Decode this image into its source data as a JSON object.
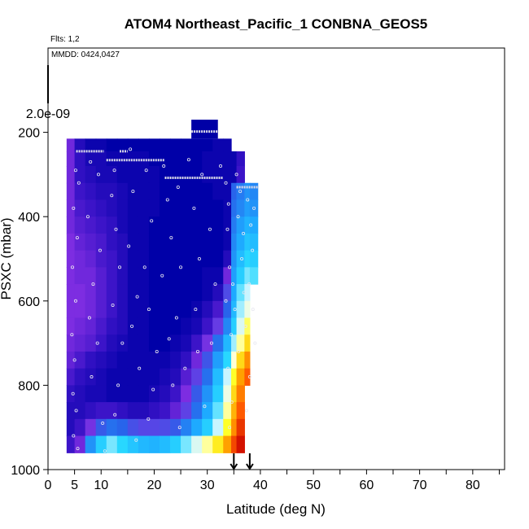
{
  "chart_data": {
    "type": "heatmap",
    "title": "ATOM4 Northeast_Pacific_1 CONBNA_GEOS5",
    "subtitle_flights": "Flts: 1,2",
    "subtitle_dates": "MMDD: 0424,0427",
    "xlabel": "Latitude (deg N)",
    "ylabel": "PSXC (mbar)",
    "xlim": [
      0,
      86
    ],
    "ylim": [
      1000,
      0
    ],
    "x_ticks_labeled": [
      0,
      5,
      10,
      20,
      30,
      40,
      50,
      60,
      70,
      80
    ],
    "x_ticks_minor": [
      15,
      25,
      35,
      45,
      55,
      65,
      75,
      85
    ],
    "y_ticks": [
      200,
      400,
      600,
      800,
      1000
    ],
    "legend_max_label": "2.0e-09",
    "legend_max_value": 2e-09,
    "curtain": {
      "lat_edges": [
        3.5,
        5,
        7,
        9,
        11,
        13,
        15,
        17,
        19,
        21,
        23,
        25,
        27,
        29,
        31,
        33,
        34.5,
        35.5,
        37,
        38,
        39.5
      ],
      "pressure_edges": [
        215,
        245,
        280,
        320,
        360,
        400,
        440,
        480,
        520,
        560,
        600,
        640,
        680,
        720,
        760,
        800,
        840,
        880,
        920,
        960
      ],
      "level_rows": [
        [
          0.18,
          0.12,
          0.1,
          0.1,
          0.09,
          0.09,
          0.09,
          0.09,
          0.09,
          0.09,
          0.09,
          0.09,
          0.09,
          0.09,
          0.1,
          0.1,
          null,
          null,
          null,
          null
        ],
        [
          0.18,
          0.13,
          0.11,
          0.11,
          0.1,
          0.1,
          0.1,
          0.1,
          0.09,
          0.09,
          0.09,
          0.09,
          0.09,
          0.1,
          0.1,
          0.1,
          0.1,
          0.13,
          null,
          null
        ],
        [
          0.18,
          0.13,
          0.12,
          0.11,
          0.11,
          0.1,
          0.1,
          0.1,
          0.1,
          0.09,
          0.09,
          0.09,
          0.09,
          0.1,
          0.1,
          0.1,
          0.1,
          0.14,
          null,
          null
        ],
        [
          0.18,
          0.14,
          0.13,
          0.12,
          0.12,
          0.11,
          0.1,
          0.1,
          0.1,
          0.09,
          0.09,
          0.09,
          0.09,
          0.09,
          0.1,
          0.1,
          0.3,
          0.34,
          0.38,
          0.36
        ],
        [
          0.18,
          0.15,
          0.14,
          0.13,
          0.12,
          0.11,
          0.1,
          0.1,
          0.1,
          0.09,
          0.09,
          0.09,
          0.09,
          0.09,
          0.09,
          0.1,
          0.32,
          0.36,
          0.4,
          0.38
        ],
        [
          0.18,
          0.16,
          0.15,
          0.14,
          0.13,
          0.11,
          0.1,
          0.1,
          0.09,
          0.09,
          0.09,
          0.09,
          0.09,
          0.09,
          0.09,
          0.1,
          0.34,
          0.4,
          0.44,
          0.42
        ],
        [
          0.19,
          0.17,
          0.16,
          0.15,
          0.13,
          0.12,
          0.1,
          0.1,
          0.09,
          0.09,
          0.09,
          0.09,
          0.09,
          0.09,
          0.09,
          0.1,
          0.36,
          0.42,
          0.48,
          0.46
        ],
        [
          0.19,
          0.18,
          0.17,
          0.15,
          0.14,
          0.12,
          0.1,
          0.1,
          0.09,
          0.09,
          0.09,
          0.09,
          0.09,
          0.09,
          0.09,
          0.12,
          0.38,
          0.46,
          0.52,
          0.5
        ],
        [
          0.19,
          0.18,
          0.18,
          0.16,
          0.14,
          0.12,
          0.1,
          0.1,
          0.09,
          0.09,
          0.09,
          0.09,
          0.09,
          0.1,
          0.1,
          0.18,
          0.4,
          0.5,
          0.56,
          0.54
        ],
        [
          0.19,
          0.19,
          0.18,
          0.16,
          0.14,
          0.12,
          0.1,
          0.1,
          0.09,
          0.09,
          0.09,
          0.09,
          0.09,
          0.1,
          0.12,
          0.25,
          0.42,
          0.55,
          0.6,
          null
        ],
        [
          0.19,
          0.19,
          0.18,
          0.16,
          0.14,
          0.12,
          0.1,
          0.1,
          0.09,
          0.09,
          0.09,
          0.09,
          0.1,
          0.12,
          0.15,
          0.3,
          0.45,
          0.58,
          0.64,
          null
        ],
        [
          0.19,
          0.18,
          0.17,
          0.15,
          0.13,
          0.12,
          0.1,
          0.1,
          0.09,
          0.09,
          0.09,
          0.1,
          0.11,
          0.14,
          0.22,
          0.36,
          0.5,
          0.62,
          0.7,
          null
        ],
        [
          0.18,
          0.17,
          0.16,
          0.14,
          0.12,
          0.11,
          0.1,
          0.1,
          0.09,
          0.09,
          0.1,
          0.11,
          0.14,
          0.2,
          0.32,
          0.45,
          0.58,
          0.68,
          0.76,
          null
        ],
        [
          0.17,
          0.15,
          0.13,
          0.12,
          0.11,
          0.1,
          0.1,
          0.1,
          0.1,
          0.1,
          0.11,
          0.13,
          0.18,
          0.27,
          0.4,
          0.52,
          0.66,
          0.76,
          0.84,
          null
        ],
        [
          0.15,
          0.13,
          0.12,
          0.11,
          0.1,
          0.1,
          0.1,
          0.1,
          0.1,
          0.11,
          0.12,
          0.16,
          0.23,
          0.32,
          0.46,
          0.6,
          0.72,
          0.82,
          0.9,
          null
        ],
        [
          0.13,
          0.12,
          0.11,
          0.11,
          0.1,
          0.1,
          0.1,
          0.1,
          0.11,
          0.12,
          0.14,
          0.19,
          0.28,
          0.38,
          0.5,
          0.64,
          0.76,
          0.86,
          null,
          null
        ],
        [
          0.12,
          0.12,
          0.13,
          0.14,
          0.14,
          0.13,
          0.12,
          0.12,
          0.13,
          0.14,
          0.17,
          0.23,
          0.32,
          0.42,
          0.55,
          0.68,
          0.8,
          0.9,
          null,
          null
        ],
        [
          0.12,
          0.14,
          0.2,
          0.28,
          0.32,
          0.3,
          0.26,
          0.24,
          0.24,
          0.25,
          0.28,
          0.35,
          0.42,
          0.5,
          0.6,
          0.72,
          0.84,
          0.94,
          null,
          null
        ],
        [
          0.14,
          0.18,
          0.38,
          0.5,
          0.56,
          0.52,
          0.48,
          0.45,
          0.44,
          0.46,
          0.5,
          0.56,
          0.62,
          0.68,
          0.74,
          0.82,
          0.92,
          0.98,
          null,
          null
        ]
      ],
      "top_block": {
        "lat": [
          27,
          32
        ],
        "pressure": [
          170,
          215
        ],
        "level": 0.08
      }
    },
    "flight_track_segments": [
      {
        "lat": [
          5.3,
          10.5
        ],
        "pressure": 245
      },
      {
        "lat": [
          13.5,
          15.0
        ],
        "pressure": 245
      },
      {
        "lat": [
          11.0,
          22.0
        ],
        "pressure": 266
      },
      {
        "lat": [
          27.0,
          32.0
        ],
        "pressure": 198
      },
      {
        "lat": [
          22.0,
          33.0
        ],
        "pressure": 308
      },
      {
        "lat": [
          35.5,
          39.5
        ],
        "pressure": 330
      }
    ],
    "sample_points": [
      [
        5.2,
        290
      ],
      [
        5.8,
        320
      ],
      [
        4.8,
        380
      ],
      [
        5.5,
        450
      ],
      [
        4.6,
        520
      ],
      [
        5.2,
        600
      ],
      [
        4.5,
        680
      ],
      [
        5.0,
        740
      ],
      [
        4.7,
        820
      ],
      [
        5.3,
        860
      ],
      [
        4.8,
        920
      ],
      [
        5.6,
        950
      ],
      [
        8.0,
        270
      ],
      [
        7.5,
        400
      ],
      [
        8.5,
        560
      ],
      [
        7.8,
        640
      ],
      [
        8.2,
        780
      ],
      [
        9.5,
        300
      ],
      [
        9.8,
        480
      ],
      [
        9.3,
        700
      ],
      [
        10.3,
        890
      ],
      [
        10.7,
        956
      ],
      [
        12.5,
        290
      ],
      [
        12.0,
        350
      ],
      [
        12.8,
        430
      ],
      [
        13.5,
        520
      ],
      [
        12.2,
        610
      ],
      [
        14.0,
        700
      ],
      [
        13.2,
        800
      ],
      [
        12.6,
        870
      ],
      [
        15.5,
        240
      ],
      [
        16.0,
        340
      ],
      [
        15.2,
        470
      ],
      [
        16.8,
        590
      ],
      [
        15.8,
        660
      ],
      [
        17.2,
        760
      ],
      [
        16.6,
        930
      ],
      [
        18.5,
        290
      ],
      [
        19.5,
        410
      ],
      [
        18.2,
        520
      ],
      [
        19.0,
        620
      ],
      [
        20.5,
        720
      ],
      [
        19.8,
        810
      ],
      [
        18.9,
        880
      ],
      [
        21.8,
        280
      ],
      [
        22.5,
        360
      ],
      [
        23.2,
        450
      ],
      [
        21.5,
        540
      ],
      [
        22.8,
        690
      ],
      [
        23.5,
        800
      ],
      [
        24.5,
        330
      ],
      [
        25.0,
        520
      ],
      [
        24.2,
        640
      ],
      [
        25.8,
        760
      ],
      [
        24.8,
        900
      ],
      [
        26.5,
        265
      ],
      [
        27.5,
        380
      ],
      [
        28.5,
        500
      ],
      [
        27.8,
        620
      ],
      [
        28.2,
        720
      ],
      [
        29.5,
        850
      ],
      [
        29.0,
        300
      ],
      [
        30.5,
        430
      ],
      [
        31.5,
        560
      ],
      [
        30.8,
        700
      ],
      [
        32.5,
        280
      ],
      [
        33.5,
        320
      ],
      [
        34.0,
        370
      ],
      [
        33.8,
        430
      ],
      [
        34.2,
        520
      ],
      [
        33.5,
        600
      ],
      [
        34.5,
        680
      ],
      [
        33.9,
        760
      ],
      [
        34.6,
        840
      ],
      [
        34.2,
        900
      ],
      [
        35.5,
        300
      ],
      [
        36.2,
        340
      ],
      [
        35.8,
        400
      ],
      [
        36.8,
        440
      ],
      [
        37.6,
        360
      ],
      [
        38.2,
        420
      ],
      [
        38.8,
        380
      ],
      [
        38.5,
        480
      ],
      [
        37.9,
        560
      ],
      [
        38.6,
        620
      ],
      [
        39.0,
        700
      ],
      [
        38.0,
        780
      ],
      [
        37.4,
        860
      ],
      [
        36.5,
        500
      ],
      [
        36.9,
        580
      ],
      [
        37.2,
        660
      ],
      [
        35.2,
        620
      ],
      [
        34.8,
        560
      ],
      [
        35.9,
        720
      ]
    ],
    "arrows": [
      {
        "lat": 35,
        "pressure": 1000
      },
      {
        "lat": 38,
        "pressure": 1000
      }
    ],
    "colors": {
      "dark_blue": "#0000a8",
      "purple": "#7a2bde",
      "cyan": "#20d0ff",
      "yellow": "#ffff30",
      "orange": "#ff9a00",
      "red": "#d00000",
      "track": "#d8d8e8"
    }
  }
}
